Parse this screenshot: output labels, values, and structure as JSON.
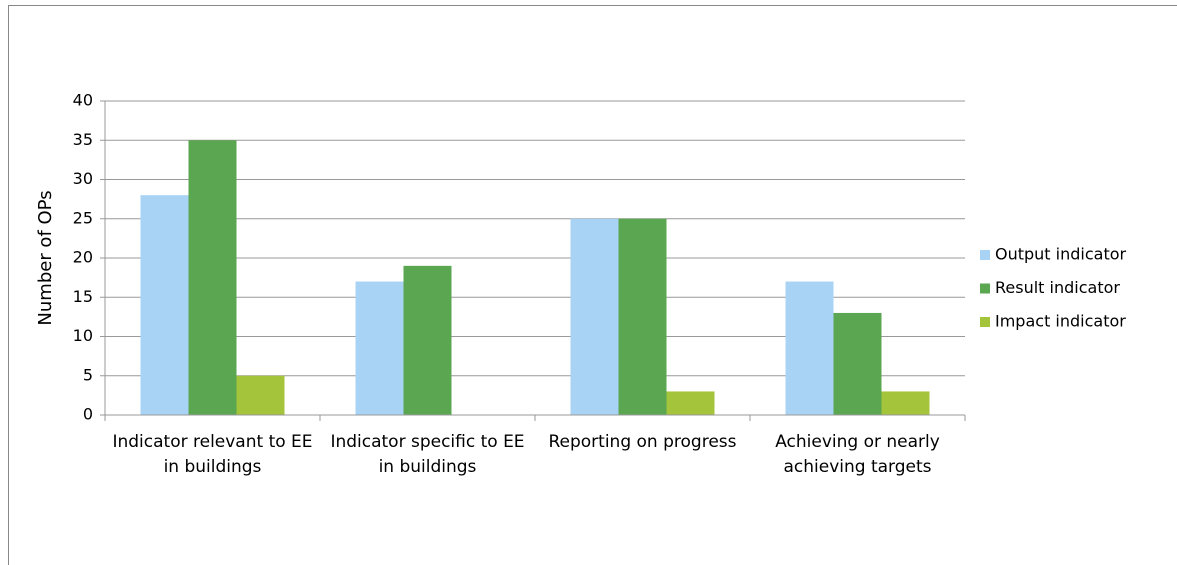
{
  "chart_data": {
    "type": "bar",
    "ylabel": "Number of OPs",
    "categories": [
      "Indicator relevant to EE in buildings",
      "Indicator specific to EE in buildings",
      "Reporting on progress",
      "Achieving or nearly achieving targets"
    ],
    "series": [
      {
        "name": "Output indicator",
        "color": "#a9d3f5",
        "values": [
          28,
          17,
          25,
          17
        ]
      },
      {
        "name": "Result indicator",
        "color": "#5aa651",
        "values": [
          35,
          19,
          25,
          13
        ]
      },
      {
        "name": "Impact indicator",
        "color": "#a4c43b",
        "values": [
          5,
          0,
          3,
          3
        ]
      }
    ],
    "ylim": [
      0,
      40
    ],
    "yticks": [
      0,
      5,
      10,
      15,
      20,
      25,
      30,
      35,
      40
    ],
    "grid": true,
    "legend": "right"
  }
}
